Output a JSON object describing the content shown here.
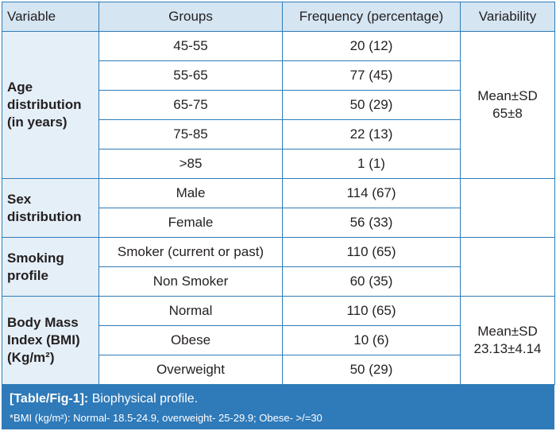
{
  "table": {
    "headers": {
      "variable": "Variable",
      "groups": "Groups",
      "frequency": "Frequency (percentage)",
      "variability": "Variability"
    },
    "sections": [
      {
        "variable_lines": [
          "Age",
          "distribution",
          "(in years)"
        ],
        "variability_lines": [
          "Mean±SD",
          "65±8"
        ],
        "rows": [
          {
            "group": "45-55",
            "frequency": "20 (12)"
          },
          {
            "group": "55-65",
            "frequency": "77 (45)"
          },
          {
            "group": "65-75",
            "frequency": "50 (29)"
          },
          {
            "group": "75-85",
            "frequency": "22 (13)"
          },
          {
            "group": ">85",
            "frequency": "1 (1)"
          }
        ]
      },
      {
        "variable_lines": [
          "Sex",
          "distribution"
        ],
        "variability_lines": [],
        "rows": [
          {
            "group": "Male",
            "frequency": "114 (67)"
          },
          {
            "group": "Female",
            "frequency": "56 (33)"
          }
        ]
      },
      {
        "variable_lines": [
          "Smoking",
          "profile"
        ],
        "variability_lines": [],
        "rows": [
          {
            "group": "Smoker (current or past)",
            "frequency": "110 (65)"
          },
          {
            "group": "Non Smoker",
            "frequency": "60 (35)"
          }
        ]
      },
      {
        "variable_lines": [
          "Body Mass",
          "Index (BMI)",
          "(Kg/m²)"
        ],
        "variability_lines": [
          "Mean±SD",
          "23.13±4.14"
        ],
        "rows": [
          {
            "group": "Normal",
            "frequency": "110 (65)"
          },
          {
            "group": "Obese",
            "frequency": "10 (6)"
          },
          {
            "group": "Overweight",
            "frequency": "50 (29)"
          }
        ]
      }
    ]
  },
  "caption": {
    "label": "[Table/Fig-1]:",
    "title": "Biophysical profile.",
    "footnote": "*BMI (kg/m²): Normal- 18.5-24.9, overweight- 25-29.9; Obese- >/=30"
  },
  "colors": {
    "border": "#2e7cb8",
    "header_bg": "#d5e5f2",
    "variable_bg": "#e5eff8",
    "caption_bg": "#2f7ab9"
  }
}
